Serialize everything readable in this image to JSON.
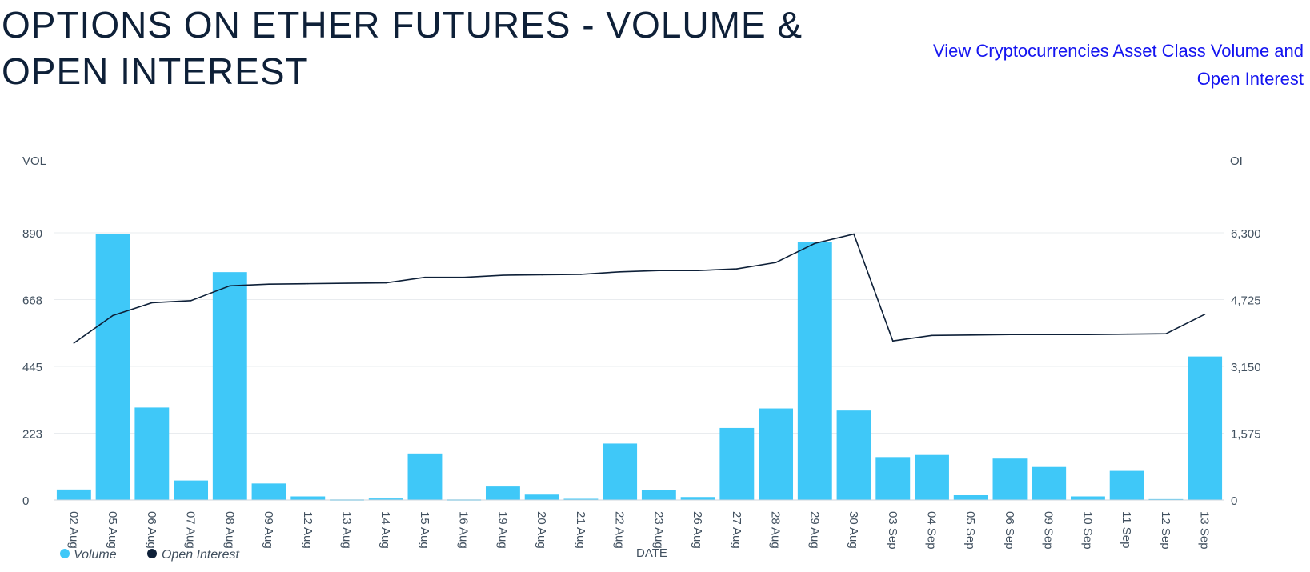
{
  "page": {
    "title": "OPTIONS ON ETHER FUTURES - VOLUME & OPEN INTEREST",
    "link_text": "View Cryptocurrencies Asset Class Volume and Open Interest"
  },
  "colors": {
    "bar": "#3fc8f8",
    "line": "#0e2038",
    "grid": "#e9ecef",
    "axis_text": "#41505f",
    "title": "#0e2038",
    "link": "#1515f0"
  },
  "chart_data": {
    "type": "bar",
    "xlabel": "DATE",
    "ylabel_left": "VOL",
    "ylabel_right": "OI",
    "ylim_left": [
      0,
      890
    ],
    "ylim_right": [
      0,
      6300
    ],
    "yticks_left": [
      "0",
      "223",
      "445",
      "668",
      "890"
    ],
    "yticks_right": [
      "0",
      "1,575",
      "3,150",
      "4,725",
      "6,300"
    ],
    "grid": true,
    "legend_position": "bottom-left",
    "categories": [
      "02 Aug",
      "05 Aug",
      "06 Aug",
      "07 Aug",
      "08 Aug",
      "09 Aug",
      "12 Aug",
      "13 Aug",
      "14 Aug",
      "15 Aug",
      "16 Aug",
      "19 Aug",
      "20 Aug",
      "21 Aug",
      "22 Aug",
      "23 Aug",
      "26 Aug",
      "27 Aug",
      "28 Aug",
      "29 Aug",
      "30 Aug",
      "03 Sep",
      "04 Sep",
      "05 Sep",
      "06 Sep",
      "09 Sep",
      "10 Sep",
      "11 Sep",
      "12 Sep",
      "13 Sep"
    ],
    "series": [
      {
        "name": "Volume",
        "type": "bar",
        "axis": "left",
        "values": [
          35,
          885,
          308,
          65,
          759,
          55,
          12,
          2,
          5,
          155,
          2,
          45,
          18,
          4,
          188,
          32,
          10,
          240,
          305,
          858,
          298,
          143,
          150,
          16,
          138,
          110,
          12,
          97,
          3,
          478
        ]
      },
      {
        "name": "Open Interest",
        "type": "line",
        "axis": "right",
        "values": [
          3700,
          4350,
          4650,
          4700,
          5050,
          5090,
          5100,
          5110,
          5120,
          5250,
          5250,
          5300,
          5310,
          5320,
          5380,
          5410,
          5410,
          5450,
          5600,
          6050,
          6270,
          3750,
          3880,
          3890,
          3900,
          3900,
          3900,
          3910,
          3920,
          4380
        ]
      }
    ]
  }
}
